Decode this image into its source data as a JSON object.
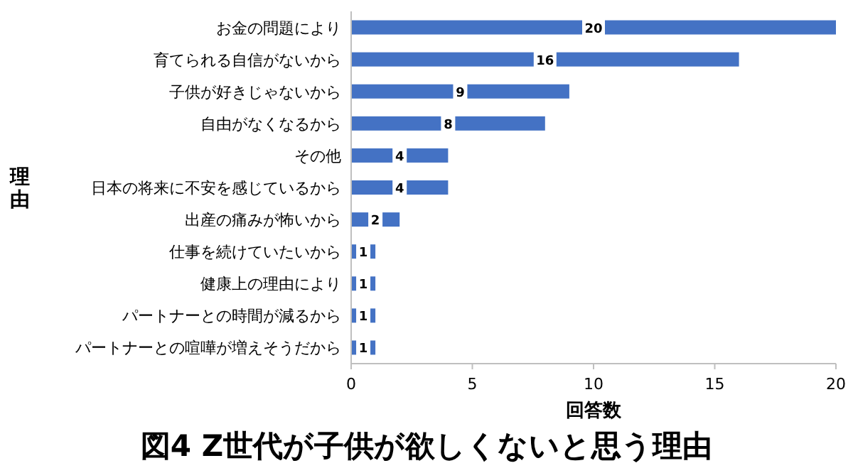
{
  "chart_data": {
    "type": "bar",
    "orientation": "horizontal",
    "title": "図4 Z世代が子供が欲しくないと思う理由",
    "xlabel": "回答数",
    "ylabel": "理由",
    "categories": [
      "お金の問題により",
      "育てられる自信がないから",
      "子供が好きじゃないから",
      "自由がなくなるから",
      "その他",
      "日本の将来に不安を感じているから",
      "出産の痛みが怖いから",
      "仕事を続けていたいから",
      "健康上の理由により",
      "パートナーとの時間が減るから",
      "パートナーとの喧嘩が増えそうだから"
    ],
    "values": [
      20,
      16,
      9,
      8,
      4,
      4,
      2,
      1,
      1,
      1,
      1
    ],
    "color": "#4472c4",
    "xlim": [
      0,
      20
    ],
    "xticks": [
      0,
      5,
      10,
      15,
      20
    ],
    "data_labels": true
  }
}
